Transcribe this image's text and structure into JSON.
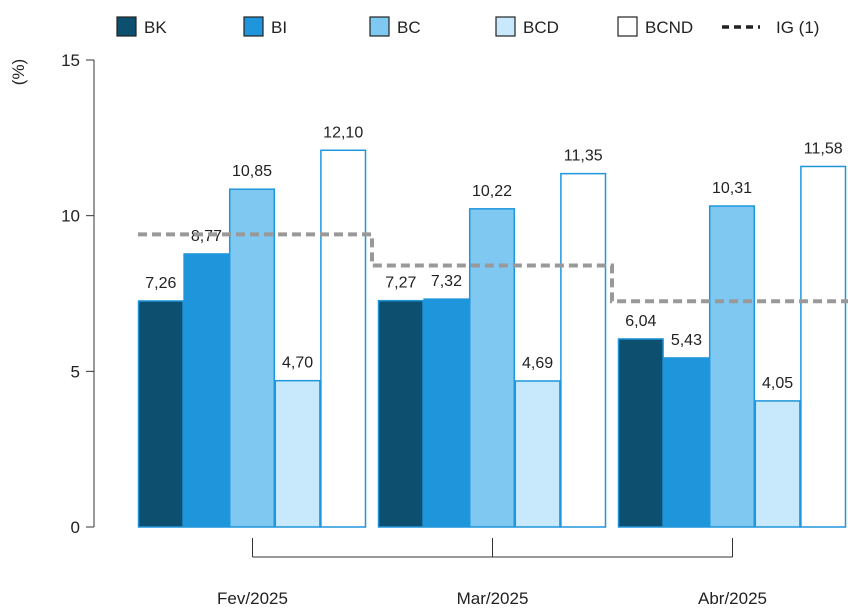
{
  "chart_data": {
    "type": "bar",
    "ylabel": "(%)",
    "ylim": [
      0,
      15
    ],
    "yticks": [
      0,
      5,
      10,
      15
    ],
    "categories": [
      "Fev/2025",
      "Mar/2025",
      "Abr/2025"
    ],
    "series": [
      {
        "name": "BK",
        "color": "#0d4f6f",
        "values": [
          7.26,
          7.27,
          6.04
        ],
        "labels": [
          "7,26",
          "7,27",
          "6,04"
        ]
      },
      {
        "name": "BI",
        "color": "#1f96dc",
        "values": [
          8.77,
          7.32,
          5.43
        ],
        "labels": [
          "8,77",
          "7,32",
          "5,43"
        ]
      },
      {
        "name": "BC",
        "color": "#7ec8f2",
        "values": [
          10.85,
          10.22,
          10.31
        ],
        "labels": [
          "10,85",
          "10,22",
          "10,31"
        ]
      },
      {
        "name": "BCD",
        "color": "#c8e9fb",
        "values": [
          4.7,
          4.69,
          4.05
        ],
        "labels": [
          "4,70",
          "4,69",
          "4,05"
        ]
      },
      {
        "name": "BCND",
        "color": "#ffffff",
        "values": [
          12.1,
          11.35,
          11.58
        ],
        "labels": [
          "12,10",
          "11,35",
          "11,58"
        ]
      }
    ],
    "reference_line": {
      "name": "IG (1)",
      "color": "#999999",
      "values": [
        9.4,
        8.4,
        7.25
      ]
    },
    "bar_stroke": "#1f96dc",
    "legend_position": "top",
    "grid": false
  }
}
